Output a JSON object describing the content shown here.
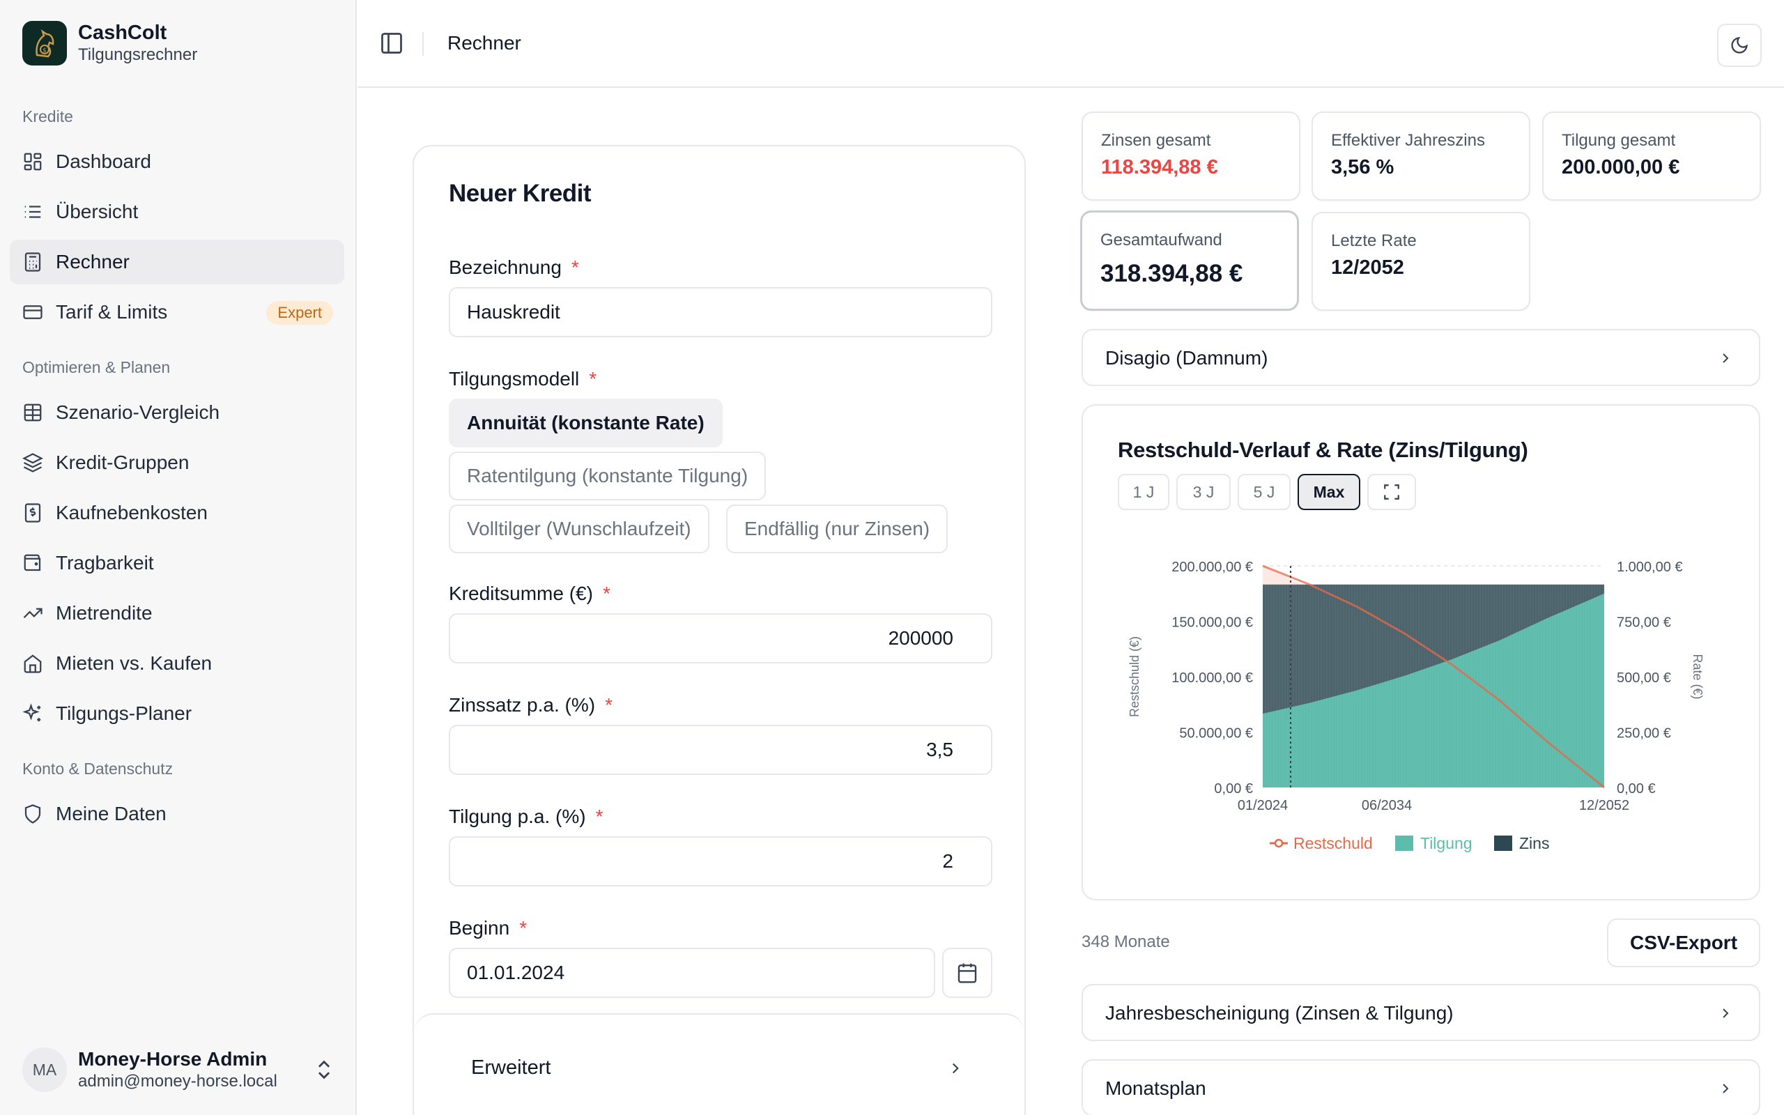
{
  "brand": {
    "name": "CashColt",
    "subtitle": "Tilgungsrechner"
  },
  "sidebar": {
    "groups": [
      "Kredite",
      "Optimieren & Planen",
      "Konto & Datenschutz"
    ],
    "items": [
      {
        "label": "Dashboard",
        "icon": "dashboard-icon"
      },
      {
        "label": "Übersicht",
        "icon": "list-icon"
      },
      {
        "label": "Rechner",
        "icon": "calculator-icon"
      },
      {
        "label": "Tarif & Limits",
        "icon": "credit-card-icon",
        "badge": "Expert"
      },
      {
        "label": "Szenario-Vergleich",
        "icon": "table-icon"
      },
      {
        "label": "Kredit-Gruppen",
        "icon": "layers-icon"
      },
      {
        "label": "Kaufnebenkosten",
        "icon": "receipt-icon"
      },
      {
        "label": "Tragbarkeit",
        "icon": "wallet-icon"
      },
      {
        "label": "Mietrendite",
        "icon": "trending-up-icon"
      },
      {
        "label": "Mieten vs. Kaufen",
        "icon": "home-icon"
      },
      {
        "label": "Tilgungs-Planer",
        "icon": "sparkles-icon"
      },
      {
        "label": "Meine Daten",
        "icon": "shield-icon"
      }
    ],
    "active": "Rechner"
  },
  "user": {
    "initials": "MA",
    "name": "Money-Horse Admin",
    "email": "admin@money-horse.local"
  },
  "header": {
    "title": "Rechner"
  },
  "form": {
    "title": "Neuer Kredit",
    "required_mark": "*",
    "fields": {
      "bezeichnung": {
        "label": "Bezeichnung",
        "value": "Hauskredit"
      },
      "tilgungsmodell": {
        "label": "Tilgungsmodell",
        "options": [
          "Annuität (konstante Rate)",
          "Ratentilgung (konstante Tilgung)",
          "Volltilger (Wunschlaufzeit)",
          "Endfällig (nur Zinsen)"
        ],
        "selected": "Annuität (konstante Rate)"
      },
      "kreditsumme": {
        "label": "Kreditsumme (€)",
        "value": "200000"
      },
      "zinssatz": {
        "label": "Zinssatz p.a. (%)",
        "value": "3,5"
      },
      "tilgung": {
        "label": "Tilgung p.a. (%)",
        "value": "2"
      },
      "beginn": {
        "label": "Beginn",
        "value": "01.01.2024"
      }
    },
    "advanced_label": "Erweitert"
  },
  "stats": {
    "zinsen": {
      "label": "Zinsen gesamt",
      "value": "118.394,88 €"
    },
    "effektiv": {
      "label": "Effektiver Jahreszins",
      "value": "3,56 %"
    },
    "tilgung": {
      "label": "Tilgung gesamt",
      "value": "200.000,00 €"
    },
    "gesamt": {
      "label": "Gesamtaufwand",
      "value": "318.394,88 €"
    },
    "letzte": {
      "label": "Letzte Rate",
      "value": "12/2052"
    }
  },
  "disagio_label": "Disagio (Damnum)",
  "chart_data": {
    "type": "area",
    "title": "Restschuld-Verlauf & Rate (Zins/Tilgung)",
    "ranges": [
      "1 J",
      "3 J",
      "5 J",
      "Max"
    ],
    "selected_range": "Max",
    "x_ticks": [
      "01/2024",
      "06/2034",
      "12/2052"
    ],
    "y_left": {
      "label": "Restschuld (€)",
      "ticks": [
        "200.000,00 €",
        "150.000,00 €",
        "100.000,00 €",
        "50.000,00 €",
        "0,00 €"
      ],
      "lim": [
        0,
        200000
      ]
    },
    "y_right": {
      "label": "Rate (€)",
      "ticks": [
        "1.000,00 €",
        "750,00 €",
        "500,00 €",
        "250,00 €",
        "0,00 €"
      ],
      "lim": [
        0,
        1000
      ]
    },
    "x_years": [
      2024,
      2028,
      2032,
      2036,
      2040,
      2044,
      2048,
      2052.9
    ],
    "restschuld": [
      200000,
      183000,
      163000,
      139000,
      111000,
      79000,
      42000,
      0
    ],
    "tilgung_rate": [
      333,
      382,
      439,
      504,
      578,
      663,
      762,
      875
    ],
    "zins_rate": [
      583,
      534,
      477,
      412,
      338,
      253,
      154,
      41
    ],
    "legend": [
      "Restschuld",
      "Tilgung",
      "Zins"
    ],
    "colors": {
      "restschuld": "#e4694a",
      "tilgung": "#5ebcac",
      "zins": "#2d4852"
    }
  },
  "footer": {
    "months": "348 Monate",
    "csv_label": "CSV-Export",
    "jahres_label": "Jahresbescheinigung (Zinsen & Tilgung)",
    "monats_label": "Monatsplan"
  }
}
